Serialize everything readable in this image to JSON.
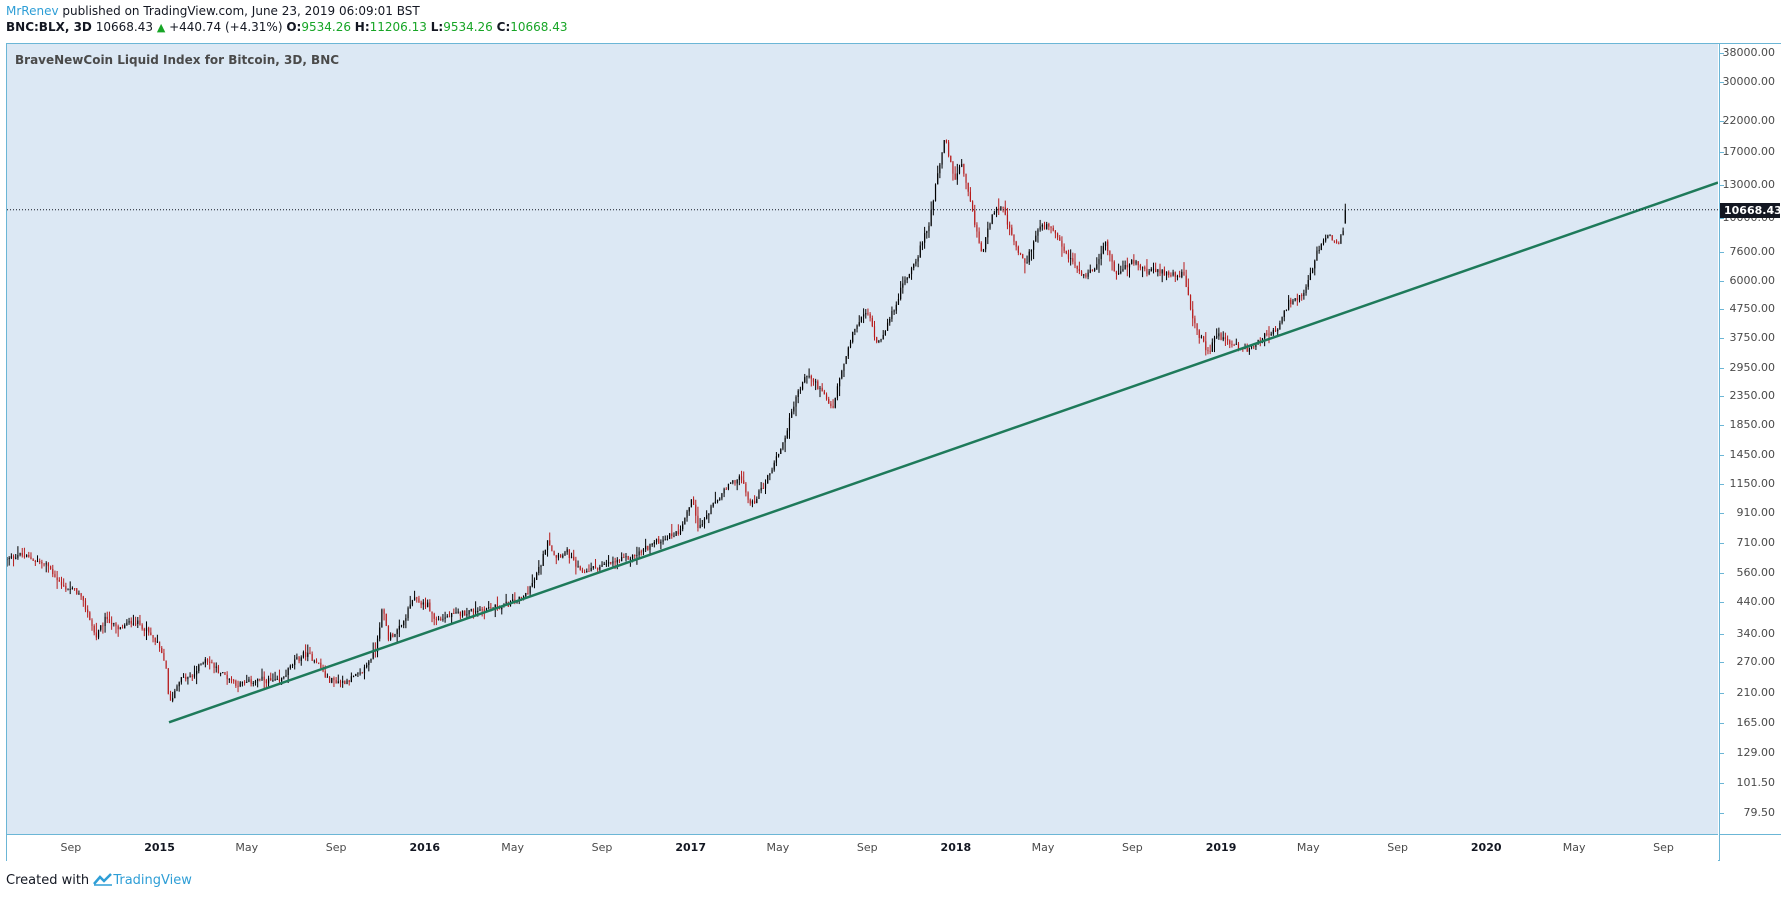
{
  "header": {
    "author": "MrRenev",
    "published_text": "published on TradingView.com, June 23, 2019 06:09:01 BST",
    "symbol": "BNC:BLX, 3D",
    "last": "10668.43",
    "change": "+440.74 (+4.31%)",
    "open_label": "O:",
    "open": "9534.26",
    "high_label": "H:",
    "high": "11206.13",
    "low_label": "L:",
    "low": "9534.26",
    "close_label": "C:",
    "close": "10668.43"
  },
  "footer": {
    "created_with": "Created with",
    "brand": "TradingView"
  },
  "colors": {
    "plot_bg": "#dce8f4",
    "up": "#000000",
    "down": "#b71c1c",
    "trendline": "#1e7a5a",
    "price_line": "#131722",
    "axis_border": "#6bb6d6"
  },
  "chart_data": {
    "type": "candlestick",
    "title": "BraveNewCoin Liquid Index for Bitcoin, 3D, BNC",
    "scale": "log",
    "ylim": [
      67,
      41000
    ],
    "x_range": [
      "2014-06-05",
      "2020-11-15"
    ],
    "y_ticks": [
      "38000.00",
      "30000.00",
      "22000.00",
      "17000.00",
      "13000.00",
      "10000.00",
      "7600.00",
      "6000.00",
      "4750.00",
      "3750.00",
      "2950.00",
      "2350.00",
      "1850.00",
      "1450.00",
      "1150.00",
      "910.00",
      "710.00",
      "560.00",
      "440.00",
      "340.00",
      "270.00",
      "210.00",
      "165.00",
      "129.00",
      "101.50",
      "79.50"
    ],
    "x_ticks": [
      {
        "label": "Sep",
        "date": "2014-09-01",
        "year": false
      },
      {
        "label": "2015",
        "date": "2015-01-01",
        "year": true
      },
      {
        "label": "May",
        "date": "2015-05-01",
        "year": false
      },
      {
        "label": "Sep",
        "date": "2015-09-01",
        "year": false
      },
      {
        "label": "2016",
        "date": "2016-01-01",
        "year": true
      },
      {
        "label": "May",
        "date": "2016-05-01",
        "year": false
      },
      {
        "label": "Sep",
        "date": "2016-09-01",
        "year": false
      },
      {
        "label": "2017",
        "date": "2017-01-01",
        "year": true
      },
      {
        "label": "May",
        "date": "2017-05-01",
        "year": false
      },
      {
        "label": "Sep",
        "date": "2017-09-01",
        "year": false
      },
      {
        "label": "2018",
        "date": "2018-01-01",
        "year": true
      },
      {
        "label": "May",
        "date": "2018-05-01",
        "year": false
      },
      {
        "label": "Sep",
        "date": "2018-09-01",
        "year": false
      },
      {
        "label": "2019",
        "date": "2019-01-01",
        "year": true
      },
      {
        "label": "May",
        "date": "2019-05-01",
        "year": false
      },
      {
        "label": "Sep",
        "date": "2019-09-01",
        "year": false
      },
      {
        "label": "2020",
        "date": "2020-01-01",
        "year": true
      },
      {
        "label": "May",
        "date": "2020-05-01",
        "year": false
      },
      {
        "label": "Sep",
        "date": "2020-09-01",
        "year": false
      }
    ],
    "last_price": 10668.43,
    "last_price_label": "10668.43",
    "trendline": [
      {
        "date": "2015-01-14",
        "value": 166
      },
      {
        "date": "2020-11-15",
        "value": 13300
      }
    ],
    "price_path": [
      [
        "2014-06-05",
        620
      ],
      [
        "2014-06-20",
        650
      ],
      [
        "2014-07-10",
        625
      ],
      [
        "2014-08-01",
        590
      ],
      [
        "2014-08-20",
        500
      ],
      [
        "2014-09-10",
        480
      ],
      [
        "2014-09-25",
        400
      ],
      [
        "2014-10-05",
        330
      ],
      [
        "2014-10-20",
        390
      ],
      [
        "2014-11-05",
        350
      ],
      [
        "2014-11-25",
        380
      ],
      [
        "2014-12-10",
        360
      ],
      [
        "2014-12-30",
        310
      ],
      [
        "2015-01-10",
        260
      ],
      [
        "2015-01-14",
        190
      ],
      [
        "2015-01-28",
        235
      ],
      [
        "2015-02-15",
        240
      ],
      [
        "2015-03-05",
        280
      ],
      [
        "2015-03-25",
        250
      ],
      [
        "2015-04-20",
        225
      ],
      [
        "2015-05-20",
        235
      ],
      [
        "2015-06-15",
        230
      ],
      [
        "2015-07-05",
        270
      ],
      [
        "2015-07-20",
        290
      ],
      [
        "2015-08-05",
        275
      ],
      [
        "2015-08-20",
        235
      ],
      [
        "2015-09-10",
        230
      ],
      [
        "2015-10-05",
        245
      ],
      [
        "2015-10-25",
        300
      ],
      [
        "2015-11-04",
        420
      ],
      [
        "2015-11-12",
        330
      ],
      [
        "2015-11-30",
        360
      ],
      [
        "2015-12-15",
        450
      ],
      [
        "2016-01-05",
        430
      ],
      [
        "2016-01-15",
        380
      ],
      [
        "2016-02-15",
        400
      ],
      [
        "2016-03-15",
        415
      ],
      [
        "2016-04-15",
        425
      ],
      [
        "2016-05-15",
        455
      ],
      [
        "2016-05-30",
        520
      ],
      [
        "2016-06-10",
        610
      ],
      [
        "2016-06-18",
        740
      ],
      [
        "2016-06-28",
        640
      ],
      [
        "2016-07-15",
        660
      ],
      [
        "2016-08-02",
        560
      ],
      [
        "2016-08-20",
        580
      ],
      [
        "2016-09-15",
        605
      ],
      [
        "2016-10-15",
        640
      ],
      [
        "2016-11-10",
        710
      ],
      [
        "2016-12-15",
        780
      ],
      [
        "2017-01-04",
        1020
      ],
      [
        "2017-01-12",
        800
      ],
      [
        "2017-02-05",
        1000
      ],
      [
        "2017-02-25",
        1150
      ],
      [
        "2017-03-10",
        1220
      ],
      [
        "2017-03-25",
        960
      ],
      [
        "2017-04-15",
        1180
      ],
      [
        "2017-05-10",
        1650
      ],
      [
        "2017-05-25",
        2300
      ],
      [
        "2017-06-10",
        2800
      ],
      [
        "2017-06-25",
        2550
      ],
      [
        "2017-07-15",
        2100
      ],
      [
        "2017-07-25",
        2700
      ],
      [
        "2017-08-15",
        4100
      ],
      [
        "2017-09-01",
        4700
      ],
      [
        "2017-09-15",
        3600
      ],
      [
        "2017-10-01",
        4300
      ],
      [
        "2017-10-20",
        5800
      ],
      [
        "2017-11-08",
        7200
      ],
      [
        "2017-11-25",
        9500
      ],
      [
        "2017-12-07",
        14500
      ],
      [
        "2017-12-17",
        19000
      ],
      [
        "2017-12-30",
        13500
      ],
      [
        "2018-01-08",
        15500
      ],
      [
        "2018-01-20",
        11500
      ],
      [
        "2018-02-06",
        7400
      ],
      [
        "2018-02-20",
        10500
      ],
      [
        "2018-03-05",
        11000
      ],
      [
        "2018-03-20",
        8400
      ],
      [
        "2018-04-06",
        6800
      ],
      [
        "2018-04-25",
        9200
      ],
      [
        "2018-05-10",
        9300
      ],
      [
        "2018-06-01",
        7500
      ],
      [
        "2018-06-25",
        6200
      ],
      [
        "2018-07-10",
        6600
      ],
      [
        "2018-07-25",
        8200
      ],
      [
        "2018-08-10",
        6300
      ],
      [
        "2018-09-01",
        7000
      ],
      [
        "2018-09-20",
        6500
      ],
      [
        "2018-10-15",
        6400
      ],
      [
        "2018-11-10",
        6300
      ],
      [
        "2018-11-25",
        4200
      ],
      [
        "2018-12-15",
        3300
      ],
      [
        "2018-12-25",
        3900
      ],
      [
        "2019-01-15",
        3600
      ],
      [
        "2019-02-07",
        3400
      ],
      [
        "2019-02-25",
        3800
      ],
      [
        "2019-03-20",
        4000
      ],
      [
        "2019-04-03",
        5000
      ],
      [
        "2019-04-25",
        5300
      ],
      [
        "2019-05-15",
        7800
      ],
      [
        "2019-05-30",
        8600
      ],
      [
        "2019-06-10",
        7900
      ],
      [
        "2019-06-18",
        9200
      ],
      [
        "2019-06-23",
        10668.43
      ]
    ]
  }
}
